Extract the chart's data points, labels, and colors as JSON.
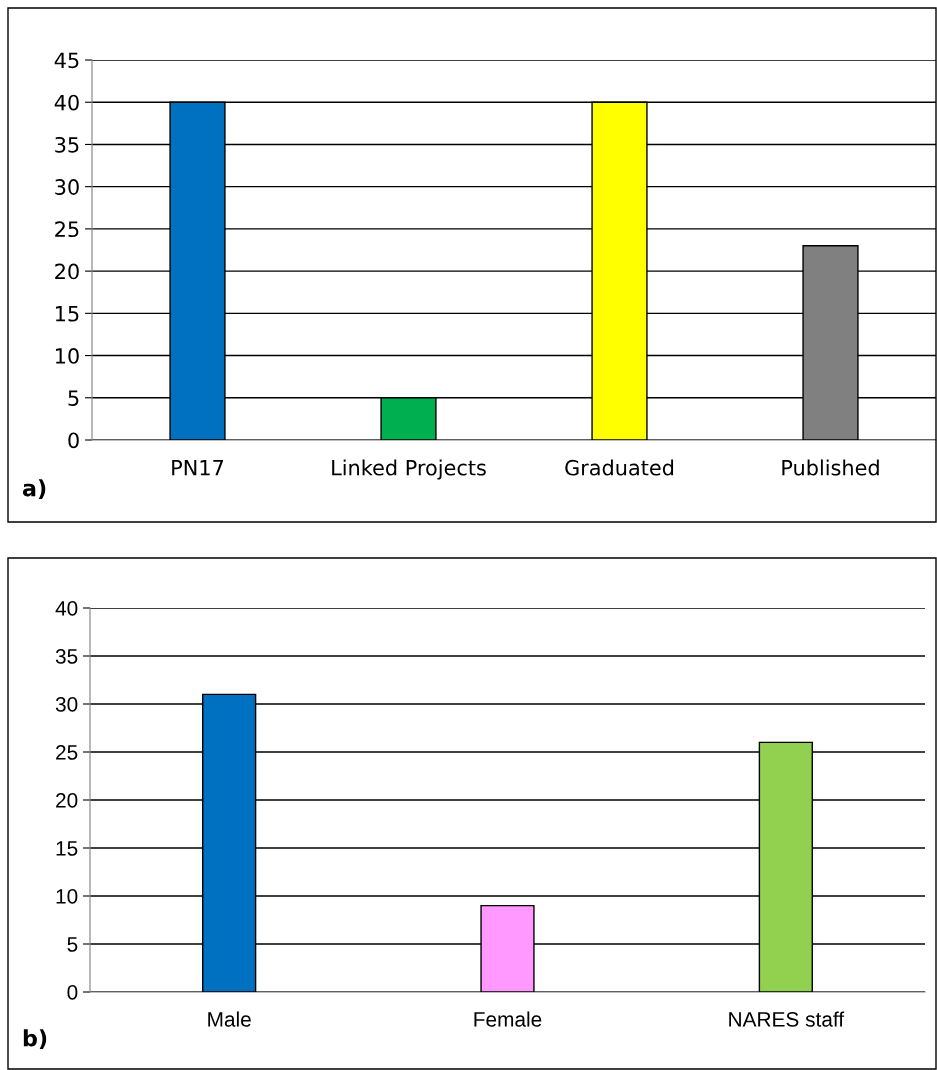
{
  "chart_data": [
    {
      "type": "bar",
      "categories": [
        "PN17",
        "Linked Projects",
        "Graduated",
        "Published"
      ],
      "values": [
        40,
        5,
        40,
        23
      ],
      "colors": [
        "#0070c0",
        "#00b050",
        "#ffff00",
        "#808080"
      ],
      "ylim": [
        0,
        45
      ],
      "yticks": [
        0,
        5,
        10,
        15,
        20,
        25,
        30,
        35,
        40,
        45
      ],
      "grid": "y",
      "annotations": [
        "a)"
      ]
    },
    {
      "type": "bar",
      "categories": [
        "Male",
        "Female",
        "NARES staff"
      ],
      "values": [
        31,
        9,
        26
      ],
      "colors": [
        "#0070c0",
        "#ff99ff",
        "#92d050"
      ],
      "ylim": [
        0,
        40
      ],
      "yticks": [
        0,
        5,
        10,
        15,
        20,
        25,
        30,
        35,
        40
      ],
      "grid": "y",
      "annotations": [
        "b)"
      ]
    }
  ]
}
